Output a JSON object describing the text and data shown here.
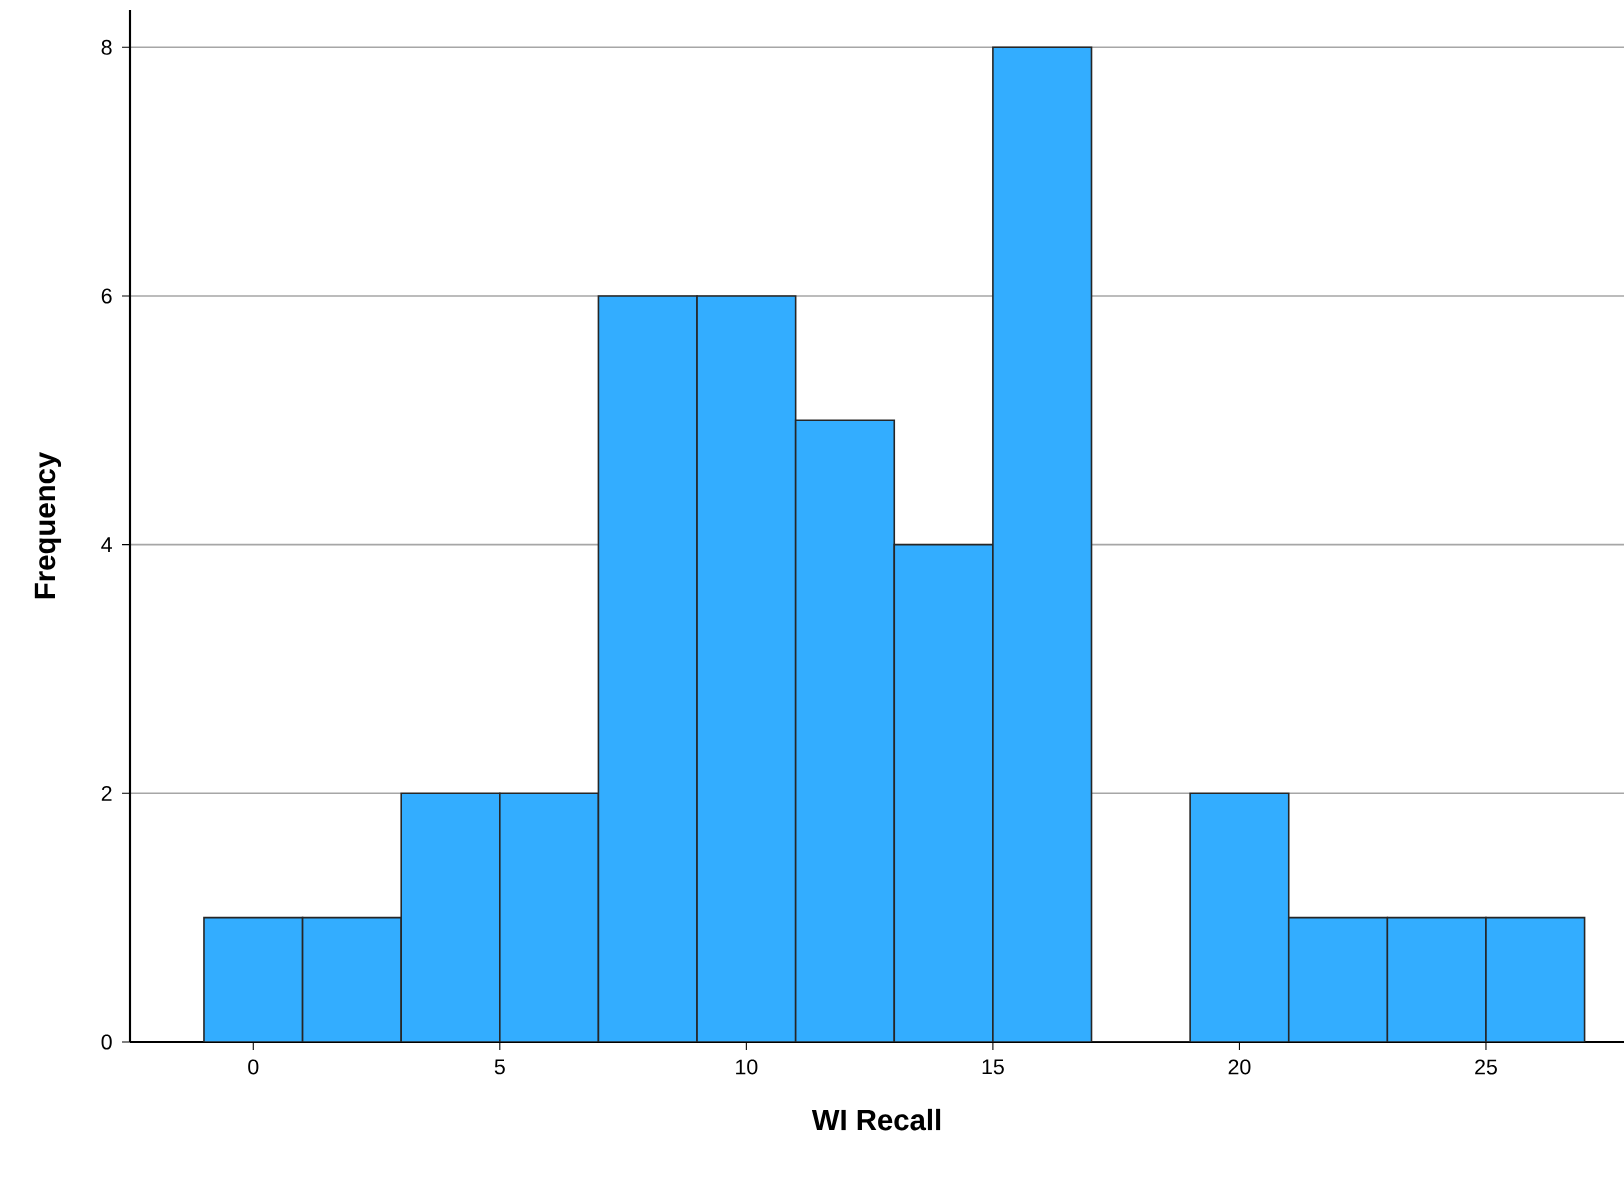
{
  "chart_data": {
    "type": "histogram",
    "xlabel": "WI Recall",
    "ylabel": "Frequency",
    "bins": [
      -1,
      1,
      3,
      5,
      7,
      9,
      11,
      13,
      15,
      17,
      19,
      21,
      23,
      25,
      27
    ],
    "values": [
      1,
      1,
      2,
      2,
      6,
      6,
      5,
      4,
      8,
      0,
      2,
      1,
      1,
      1
    ],
    "color": "#33adff",
    "xlim": [
      -2.5,
      27.8
    ],
    "xticks": [
      0,
      5,
      10,
      15,
      20,
      25
    ],
    "ylim": [
      0,
      8.3
    ],
    "yticks": [
      0,
      2,
      4,
      6,
      8
    ],
    "grid": "y"
  }
}
